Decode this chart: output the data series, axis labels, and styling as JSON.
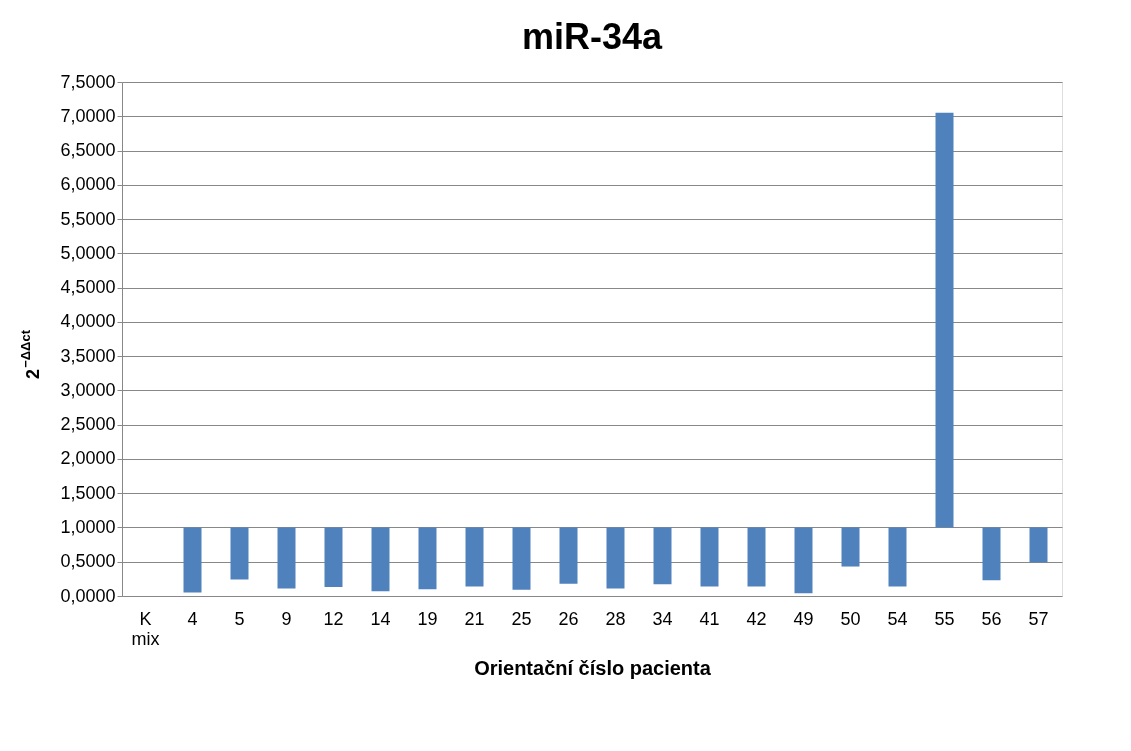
{
  "chart_data": {
    "type": "bar",
    "title": "miR-34a",
    "xlabel": "Orientační číslo pacienta",
    "ylabel": "2$^{−ΔΔct}$",
    "categories": [
      "K mix",
      "4",
      "5",
      "9",
      "12",
      "14",
      "19",
      "21",
      "25",
      "26",
      "28",
      "34",
      "41",
      "42",
      "49",
      "50",
      "54",
      "55",
      "56",
      "57"
    ],
    "base": [
      null,
      1,
      1,
      1,
      1,
      1,
      1,
      1,
      1,
      1,
      1,
      1,
      1,
      1,
      1,
      1,
      1,
      1,
      1,
      1
    ],
    "values": [
      null,
      -0.95,
      -0.76,
      -0.89,
      -0.87,
      -0.93,
      -0.9,
      -0.86,
      -0.91,
      -0.82,
      -0.89,
      -0.83,
      -0.86,
      -0.86,
      -0.96,
      -0.57,
      -0.86,
      6.05,
      -0.77,
      -0.51
    ],
    "color": "#4f81bd",
    "ylim": [
      0,
      7.5
    ],
    "yticks": [
      {
        "value": 0,
        "label": "0,0000"
      },
      {
        "value": 0.5,
        "label": "0,5000"
      },
      {
        "value": 1,
        "label": "1,0000"
      },
      {
        "value": 1.5,
        "label": "1,5000"
      },
      {
        "value": 2,
        "label": "2,0000"
      },
      {
        "value": 2.5,
        "label": "2,5000"
      },
      {
        "value": 3,
        "label": "3,0000"
      },
      {
        "value": 3.5,
        "label": "3,5000"
      },
      {
        "value": 4,
        "label": "4,0000"
      },
      {
        "value": 4.5,
        "label": "4,5000"
      },
      {
        "value": 5,
        "label": "5,0000"
      },
      {
        "value": 5.5,
        "label": "5,5000"
      },
      {
        "value": 6,
        "label": "6,0000"
      },
      {
        "value": 6.5,
        "label": "6,5000"
      },
      {
        "value": 7,
        "label": "7,0000"
      },
      {
        "value": 7.5,
        "label": "7,5000"
      }
    ],
    "grid": "y",
    "legend": false
  }
}
